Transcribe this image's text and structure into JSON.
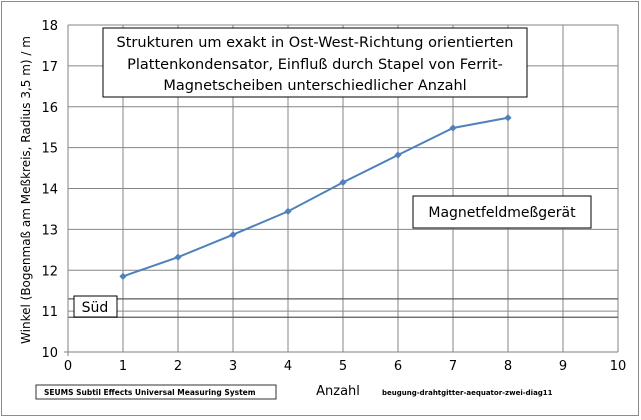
{
  "chart_data": {
    "type": "line",
    "title_lines": [
      "Strukturen um exakt in Ost-West-Richtung orientierten",
      "Plattenkondensator, Einfluß durch Stapel von Ferrit-",
      "Magnetscheiben unterschiedlicher Anzahl"
    ],
    "xlabel": "Anzahl",
    "ylabel": "Winkel (Bogenmaß am Meßkreis, Radius 3,5 m) / m",
    "xlim": [
      0,
      10
    ],
    "ylim": [
      10,
      18
    ],
    "xticks": [
      "0",
      "1",
      "2",
      "3",
      "4",
      "5",
      "6",
      "7",
      "8",
      "9",
      "10"
    ],
    "yticks": [
      "10",
      "11",
      "12",
      "13",
      "14",
      "15",
      "16",
      "17",
      "18"
    ],
    "grid": true,
    "series": [
      {
        "x": [
          1,
          2,
          3,
          4,
          5,
          6,
          7,
          8
        ],
        "values": [
          11.85,
          12.32,
          12.87,
          13.44,
          14.15,
          14.82,
          15.48,
          15.73
        ]
      }
    ],
    "reference_lines": [
      11.3,
      10.85
    ],
    "annotations": {
      "device": "Magnetfeldmeßgerät",
      "south": "Süd"
    },
    "footer": {
      "system": "SEUMS    Subtil Effects Universal Measuring System",
      "filename": "beugung-drahtgitter-aequator-zwei-diag11"
    },
    "colors": {
      "series": "#4f81bd",
      "grid": "#868686",
      "reference": "#5a5a5a"
    }
  }
}
